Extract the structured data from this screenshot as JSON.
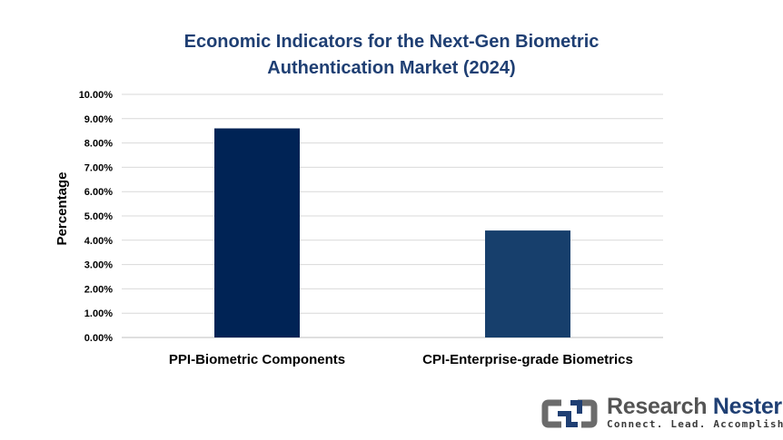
{
  "chart_data": {
    "type": "bar",
    "title_lines": [
      "Economic Indicators for the Next-Gen Biometric",
      "Authentication Market (2024)"
    ],
    "xlabel": "",
    "ylabel": "Percentage",
    "categories": [
      "PPI-Biometric Components",
      "CPI-Enterprise-grade Biometrics"
    ],
    "values": [
      8.6,
      4.4
    ],
    "bar_colors": [
      "#002355",
      "#173f6c"
    ],
    "ylim": [
      0,
      10
    ],
    "yticks": [
      0,
      1,
      2,
      3,
      4,
      5,
      6,
      7,
      8,
      9,
      10
    ],
    "ytick_labels": [
      "0.00%",
      "1.00%",
      "2.00%",
      "3.00%",
      "4.00%",
      "5.00%",
      "6.00%",
      "7.00%",
      "8.00%",
      "9.00%",
      "10.00%"
    ],
    "grid": true,
    "legend": "none"
  },
  "branding": {
    "word_a": "Research",
    "word_b": "Nester",
    "tagline": "Connect. Lead. Accomplish",
    "icon": "research-nester-logo-icon"
  },
  "colors": {
    "title": "#1f3f73",
    "gridline": "#d9d9d9"
  }
}
